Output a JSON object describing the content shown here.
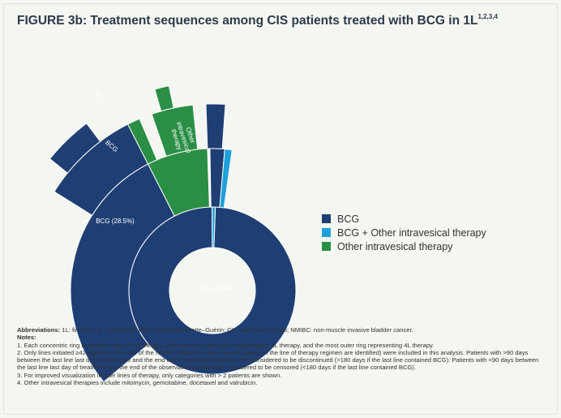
{
  "title": {
    "text": "FIGURE 3b: Treatment sequences among CIS patients treated with BCG in 1L",
    "refs": "1,2,3,4"
  },
  "colors": {
    "BCG": "#1f3f74",
    "BCG + Other intravesical therapy": "#1ea1da",
    "Other intravesical therapy": "#2a8f45",
    "background": "#f4f6f1"
  },
  "legend": [
    {
      "label": "BCG",
      "color": "#1f3f74"
    },
    {
      "label": "BCG + Other intravesical therapy",
      "color": "#1ea1da"
    },
    {
      "label": "Other intravesical therapy",
      "color": "#2a8f45"
    }
  ],
  "chart_data": {
    "type": "sunburst",
    "rings": [
      {
        "ring": "1L",
        "segments": [
          {
            "category": "BCG",
            "share_of_total": 0.994,
            "label": "BCG (99.4%)"
          },
          {
            "category": "BCG + Other intravesical therapy",
            "share_of_total": 0.006,
            "label": ""
          }
        ]
      },
      {
        "ring": "2L",
        "segments": [
          {
            "category": "BCG",
            "share_of_total": 0.285,
            "label": "BCG (28.5%)"
          },
          {
            "category": "Other intravesical therapy",
            "share_of_total": 0.085,
            "label": "Other intravesical therapy"
          },
          {
            "category": "BCG",
            "share_of_total": 0.018,
            "label": ""
          },
          {
            "category": "BCG + Other intravesical therapy",
            "share_of_total": 0.008,
            "label": ""
          }
        ]
      },
      {
        "ring": "3L",
        "segments": [
          {
            "category": "BCG",
            "share_of_total": 0.085,
            "label": "BCG"
          },
          {
            "category": "Other intravesical therapy",
            "share_of_total": 0.012,
            "label": ""
          },
          {
            "category": "Other intravesical therapy",
            "share_of_total": 0.03,
            "label": ""
          },
          {
            "category": "BCG",
            "share_of_total": 0.016,
            "label": ""
          }
        ]
      },
      {
        "ring": "4L",
        "segments": [
          {
            "category": "BCG",
            "share_of_total": 0.041,
            "label": "BCG"
          },
          {
            "category": "Other intravesical therapy",
            "share_of_total": 0.008,
            "label": ""
          }
        ]
      }
    ]
  },
  "notes": {
    "abbrev_label": "Abbreviations:",
    "abbrev_text": " 1L: first-line; 4L: fourth-line; BCG: bacillus Calmette–Guérin; CIS: carcinoma in situ; NMIBC: non-muscle invasive bladder cancer.",
    "notes_label": "Notes:",
    "items": [
      "1. Each concentric ring represents one line of therapy, with the most inner circle representing 1L therapy, and the most outer ring representing 4L therapy.",
      "2. Only lines initiated ≥42 days from the end of the NMIBC phase (to make sure all agents in the line of therapy regimen are identified) were included in this analysis. Patients with >90 days between the last line last day of treatment and the end of the observation period were considered to be discontinued (>180 days if the last line contained BCG). Patients with <90 days between the last line last day of treatment and the end of the observation period were considered to be censored (<180 days if the last line contained BCG).",
      "3. For improved visualization in later lines of therapy, only categories with > 2 patients are shown.",
      "4. Other intravesical therapies include mitomycin, gemcitabine, docetaxel and valrubicin."
    ]
  }
}
